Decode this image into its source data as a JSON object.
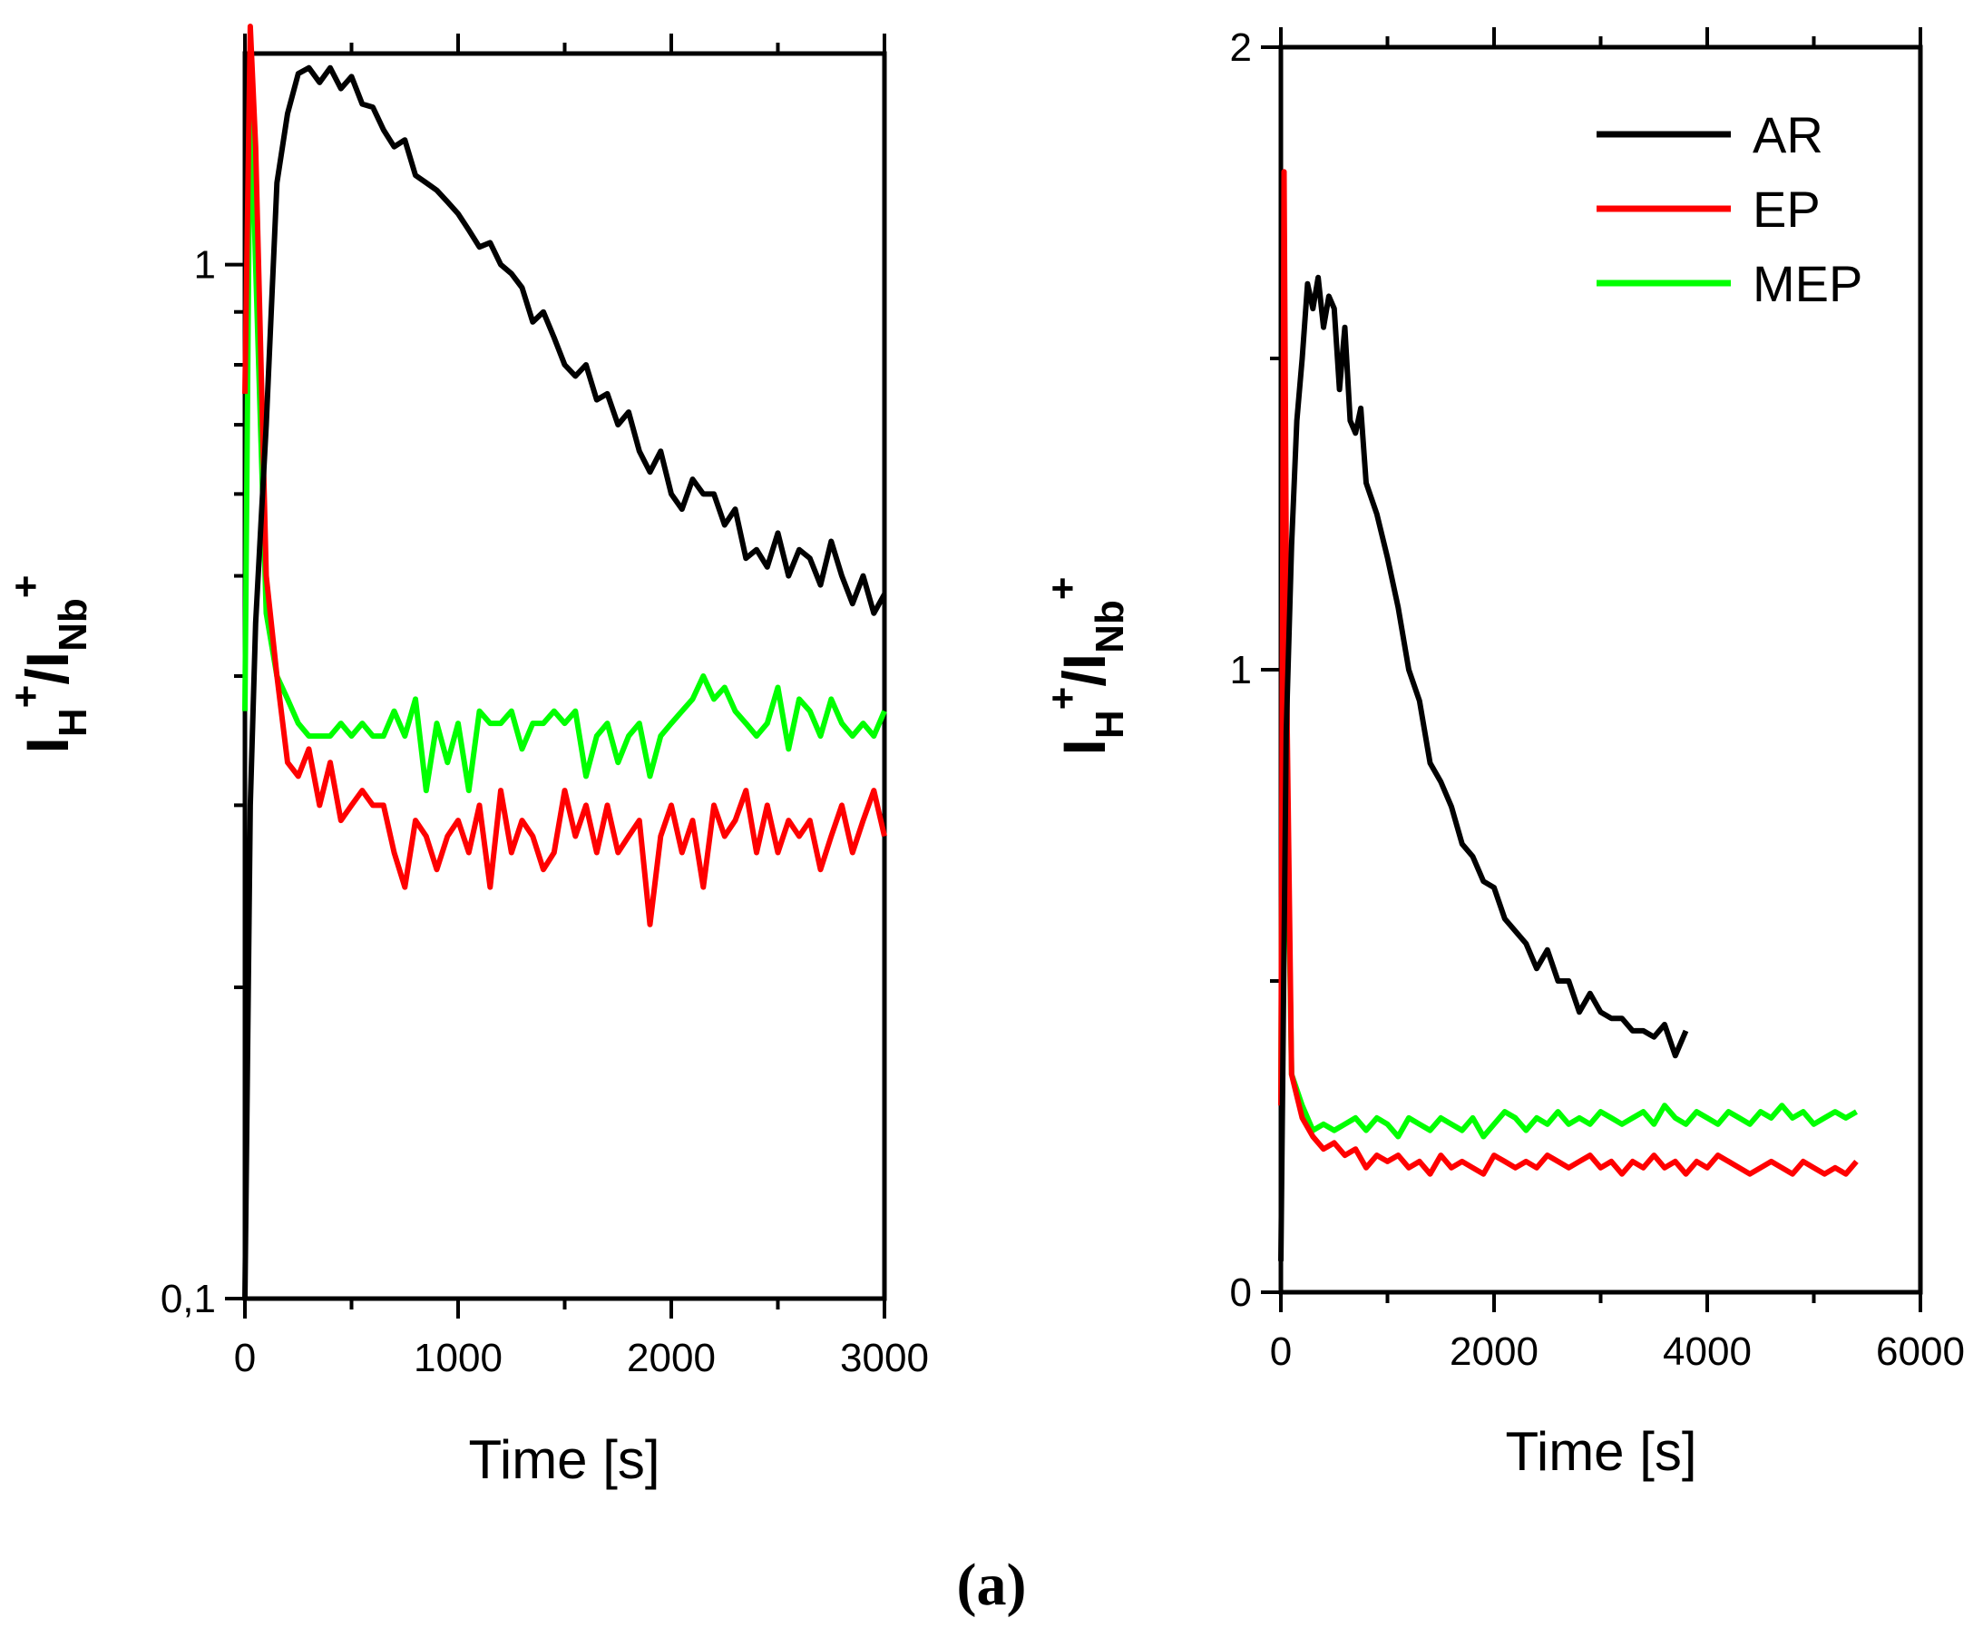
{
  "figure": {
    "caption": "(a)"
  },
  "chart_data": [
    {
      "type": "line",
      "yscale": "log",
      "xlabel": "Time [s]",
      "ylabel": {
        "main1": "I",
        "sub1": "H",
        "sup1": "+",
        "slash": "/",
        "main2": "I",
        "sub2": "Nb",
        "sup2": "+"
      },
      "xlim": [
        0,
        3000
      ],
      "ylim": [
        0.1,
        1.6
      ],
      "xticks": [
        "0",
        "1000",
        "2000",
        "3000"
      ],
      "yticks": [
        "0,1",
        "1"
      ],
      "series": [
        {
          "name": "AR",
          "color": "#000000",
          "x": [
            0,
            25,
            50,
            100,
            150,
            200,
            250,
            300,
            350,
            400,
            450,
            500,
            550,
            600,
            650,
            700,
            750,
            800,
            850,
            900,
            950,
            1000,
            1050,
            1100,
            1150,
            1200,
            1250,
            1300,
            1350,
            1400,
            1450,
            1500,
            1550,
            1600,
            1650,
            1700,
            1750,
            1800,
            1850,
            1900,
            1950,
            2000,
            2050,
            2100,
            2150,
            2200,
            2250,
            2300,
            2350,
            2400,
            2450,
            2500,
            2550,
            2600,
            2650,
            2700,
            2750,
            2800,
            2850,
            2900,
            2950,
            3000
          ],
          "y": [
            0.1,
            0.3,
            0.45,
            0.7,
            1.2,
            1.4,
            1.53,
            1.55,
            1.5,
            1.55,
            1.48,
            1.52,
            1.43,
            1.42,
            1.35,
            1.3,
            1.32,
            1.22,
            1.2,
            1.18,
            1.15,
            1.12,
            1.08,
            1.04,
            1.05,
            1.0,
            0.98,
            0.95,
            0.88,
            0.9,
            0.85,
            0.8,
            0.78,
            0.8,
            0.74,
            0.75,
            0.7,
            0.72,
            0.66,
            0.63,
            0.66,
            0.6,
            0.58,
            0.62,
            0.6,
            0.6,
            0.56,
            0.58,
            0.52,
            0.53,
            0.51,
            0.55,
            0.5,
            0.53,
            0.52,
            0.49,
            0.54,
            0.5,
            0.47,
            0.5,
            0.46,
            0.48
          ]
        },
        {
          "name": "EP",
          "color": "#ff0000",
          "x": [
            0,
            25,
            50,
            100,
            150,
            200,
            250,
            300,
            350,
            400,
            450,
            500,
            550,
            600,
            650,
            700,
            750,
            800,
            850,
            900,
            950,
            1000,
            1050,
            1100,
            1150,
            1200,
            1250,
            1300,
            1350,
            1400,
            1450,
            1500,
            1550,
            1600,
            1650,
            1700,
            1750,
            1800,
            1850,
            1900,
            1950,
            2000,
            2050,
            2100,
            2150,
            2200,
            2250,
            2300,
            2350,
            2400,
            2450,
            2500,
            2550,
            2600,
            2650,
            2700,
            2750,
            2800,
            2850,
            2900,
            2950,
            3000
          ],
          "y": [
            0.75,
            1.7,
            1.3,
            0.5,
            0.4,
            0.33,
            0.32,
            0.34,
            0.3,
            0.33,
            0.29,
            0.3,
            0.31,
            0.3,
            0.3,
            0.27,
            0.25,
            0.29,
            0.28,
            0.26,
            0.28,
            0.29,
            0.27,
            0.3,
            0.25,
            0.31,
            0.27,
            0.29,
            0.28,
            0.26,
            0.27,
            0.31,
            0.28,
            0.3,
            0.27,
            0.3,
            0.27,
            0.28,
            0.29,
            0.23,
            0.28,
            0.3,
            0.27,
            0.29,
            0.25,
            0.3,
            0.28,
            0.29,
            0.31,
            0.27,
            0.3,
            0.27,
            0.29,
            0.28,
            0.29,
            0.26,
            0.28,
            0.3,
            0.27,
            0.29,
            0.31,
            0.28
          ]
        },
        {
          "name": "MEP",
          "color": "#00ff00",
          "x": [
            0,
            25,
            50,
            100,
            150,
            200,
            250,
            300,
            350,
            400,
            450,
            500,
            550,
            600,
            650,
            700,
            750,
            800,
            850,
            900,
            950,
            1000,
            1050,
            1100,
            1150,
            1200,
            1250,
            1300,
            1350,
            1400,
            1450,
            1500,
            1550,
            1600,
            1650,
            1700,
            1750,
            1800,
            1850,
            1900,
            1950,
            2000,
            2050,
            2100,
            2150,
            2200,
            2250,
            2300,
            2350,
            2400,
            2450,
            2500,
            2550,
            2600,
            2650,
            2700,
            2750,
            2800,
            2850,
            2900,
            2950,
            3000
          ],
          "y": [
            0.37,
            1.55,
            1.0,
            0.46,
            0.4,
            0.38,
            0.36,
            0.35,
            0.35,
            0.35,
            0.36,
            0.35,
            0.36,
            0.35,
            0.35,
            0.37,
            0.35,
            0.38,
            0.31,
            0.36,
            0.33,
            0.36,
            0.31,
            0.37,
            0.36,
            0.36,
            0.37,
            0.34,
            0.36,
            0.36,
            0.37,
            0.36,
            0.37,
            0.32,
            0.35,
            0.36,
            0.33,
            0.35,
            0.36,
            0.32,
            0.35,
            0.36,
            0.37,
            0.38,
            0.4,
            0.38,
            0.39,
            0.37,
            0.36,
            0.35,
            0.36,
            0.39,
            0.34,
            0.38,
            0.37,
            0.35,
            0.38,
            0.36,
            0.35,
            0.36,
            0.35,
            0.37
          ]
        }
      ]
    },
    {
      "type": "line",
      "yscale": "linear",
      "xlabel": "Time [s]",
      "ylabel": {
        "main1": "I",
        "sub1": "H",
        "sup1": "+",
        "slash": "/",
        "main2": "I",
        "sub2": "Nb",
        "sup2": "+"
      },
      "xlim": [
        0,
        6000
      ],
      "ylim": [
        0,
        2
      ],
      "xticks": [
        "0",
        "2000",
        "4000",
        "6000"
      ],
      "yticks": [
        "0",
        "1",
        "2"
      ],
      "legend": {
        "position": "top-right",
        "entries": [
          "AR",
          "EP",
          "MEP"
        ]
      },
      "series": [
        {
          "name": "AR",
          "color": "#000000",
          "x": [
            0,
            50,
            100,
            150,
            200,
            250,
            300,
            350,
            400,
            450,
            500,
            550,
            600,
            650,
            700,
            750,
            800,
            900,
            1000,
            1100,
            1200,
            1300,
            1400,
            1500,
            1600,
            1700,
            1800,
            1900,
            2000,
            2100,
            2200,
            2300,
            2400,
            2500,
            2600,
            2700,
            2800,
            2900,
            3000,
            3100,
            3200,
            3300,
            3400,
            3500,
            3600,
            3700,
            3800
          ],
          "y": [
            0.05,
            0.9,
            1.2,
            1.4,
            1.5,
            1.62,
            1.58,
            1.63,
            1.55,
            1.6,
            1.58,
            1.45,
            1.55,
            1.4,
            1.38,
            1.42,
            1.3,
            1.25,
            1.18,
            1.1,
            1.0,
            0.95,
            0.85,
            0.82,
            0.78,
            0.72,
            0.7,
            0.66,
            0.65,
            0.6,
            0.58,
            0.56,
            0.52,
            0.55,
            0.5,
            0.5,
            0.45,
            0.48,
            0.45,
            0.44,
            0.44,
            0.42,
            0.42,
            0.41,
            0.43,
            0.38,
            0.42
          ]
        },
        {
          "name": "EP",
          "color": "#ff0000",
          "x": [
            0,
            30,
            60,
            100,
            200,
            300,
            400,
            500,
            600,
            700,
            800,
            900,
            1000,
            1100,
            1200,
            1300,
            1400,
            1500,
            1600,
            1700,
            1800,
            1900,
            2000,
            2100,
            2200,
            2300,
            2400,
            2500,
            2600,
            2700,
            2800,
            2900,
            3000,
            3100,
            3200,
            3300,
            3400,
            3500,
            3600,
            3700,
            3800,
            3900,
            4000,
            4100,
            4200,
            4300,
            4400,
            4500,
            4600,
            4700,
            4800,
            4900,
            5000,
            5100,
            5200,
            5300,
            5400
          ],
          "y": [
            0.3,
            1.8,
            0.9,
            0.35,
            0.28,
            0.25,
            0.23,
            0.24,
            0.22,
            0.23,
            0.2,
            0.22,
            0.21,
            0.22,
            0.2,
            0.21,
            0.19,
            0.22,
            0.2,
            0.21,
            0.2,
            0.19,
            0.22,
            0.21,
            0.2,
            0.21,
            0.2,
            0.22,
            0.21,
            0.2,
            0.21,
            0.22,
            0.2,
            0.21,
            0.19,
            0.21,
            0.2,
            0.22,
            0.2,
            0.21,
            0.19,
            0.21,
            0.2,
            0.22,
            0.21,
            0.2,
            0.19,
            0.2,
            0.21,
            0.2,
            0.19,
            0.21,
            0.2,
            0.19,
            0.2,
            0.19,
            0.21
          ]
        },
        {
          "name": "MEP",
          "color": "#00ff00",
          "x": [
            0,
            30,
            60,
            100,
            200,
            300,
            400,
            500,
            600,
            700,
            800,
            900,
            1000,
            1100,
            1200,
            1300,
            1400,
            1500,
            1600,
            1700,
            1800,
            1900,
            2000,
            2100,
            2200,
            2300,
            2400,
            2500,
            2600,
            2700,
            2800,
            2900,
            3000,
            3100,
            3200,
            3300,
            3400,
            3500,
            3600,
            3700,
            3800,
            3900,
            4000,
            4100,
            4200,
            4300,
            4400,
            4500,
            4600,
            4700,
            4800,
            4900,
            5000,
            5100,
            5200,
            5300,
            5400
          ],
          "y": [
            0.3,
            1.5,
            0.8,
            0.35,
            0.3,
            0.26,
            0.27,
            0.26,
            0.27,
            0.28,
            0.26,
            0.28,
            0.27,
            0.25,
            0.28,
            0.27,
            0.26,
            0.28,
            0.27,
            0.26,
            0.28,
            0.25,
            0.27,
            0.29,
            0.28,
            0.26,
            0.28,
            0.27,
            0.29,
            0.27,
            0.28,
            0.27,
            0.29,
            0.28,
            0.27,
            0.28,
            0.29,
            0.27,
            0.3,
            0.28,
            0.27,
            0.29,
            0.28,
            0.27,
            0.29,
            0.28,
            0.27,
            0.29,
            0.28,
            0.3,
            0.28,
            0.29,
            0.27,
            0.28,
            0.29,
            0.28,
            0.29
          ]
        }
      ]
    }
  ]
}
